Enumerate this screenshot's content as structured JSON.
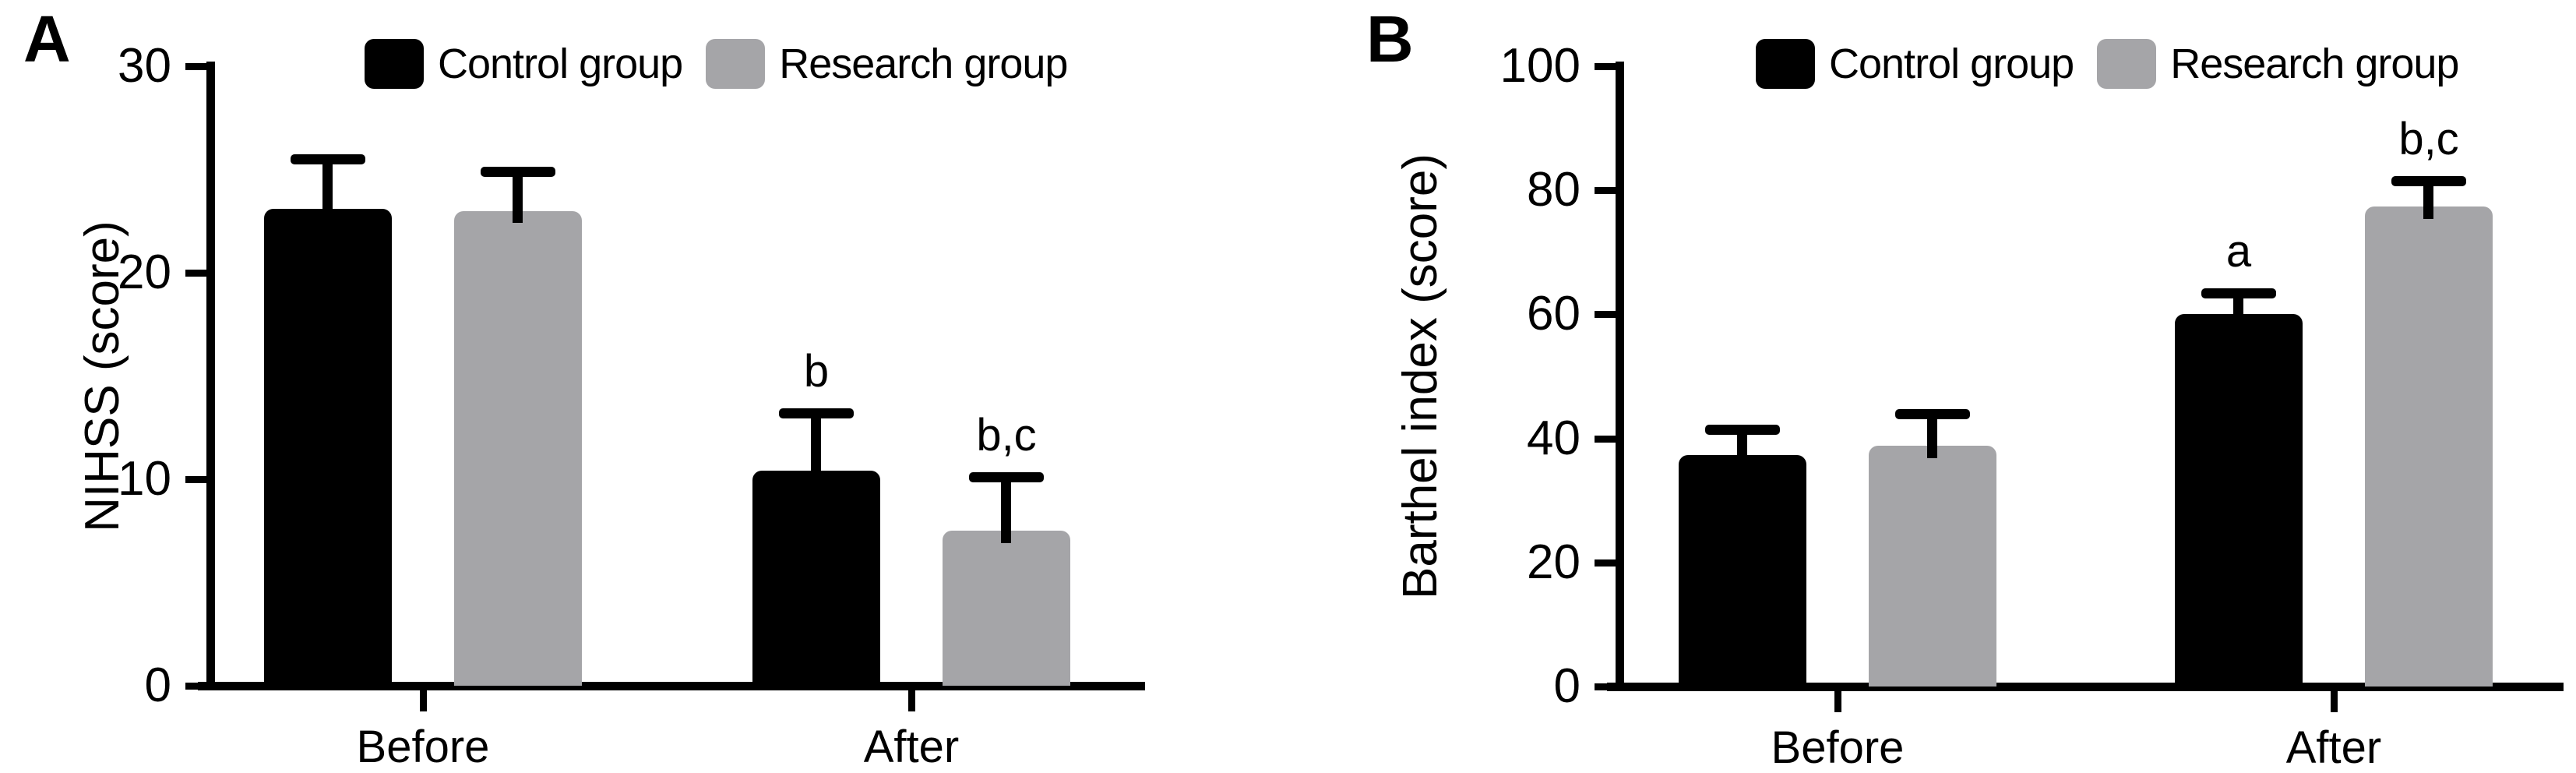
{
  "figure": {
    "background": "#ffffff",
    "colors": {
      "control_group": "#000000",
      "research_group": "#a5a5a8"
    }
  },
  "chart_data": [
    {
      "type": "bar",
      "panel_label": "A",
      "title": "",
      "xlabel": "",
      "ylabel": "NIHSS (score)",
      "categories": [
        "Before",
        "After"
      ],
      "ylim": [
        0,
        30
      ],
      "yticks": [
        0,
        10,
        20,
        30
      ],
      "grid": "off",
      "legend_position": "top",
      "series": [
        {
          "name": "Control group",
          "color": "#000000",
          "values": [
            23.1,
            10.4
          ],
          "errors": [
            2.4,
            2.8
          ],
          "annotations": [
            "",
            "b"
          ]
        },
        {
          "name": "Research group",
          "color": "#a5a5a8",
          "values": [
            23.0,
            7.5
          ],
          "errors": [
            1.9,
            2.6
          ],
          "annotations": [
            "",
            "b,c"
          ]
        }
      ]
    },
    {
      "type": "bar",
      "panel_label": "B",
      "title": "",
      "xlabel": "",
      "ylabel": "Barthel index (score)",
      "categories": [
        "Before",
        "After"
      ],
      "ylim": [
        0,
        100
      ],
      "yticks": [
        0,
        20,
        40,
        60,
        80,
        100
      ],
      "grid": "off",
      "legend_position": "top",
      "series": [
        {
          "name": "Control group",
          "color": "#000000",
          "values": [
            37.3,
            60.1
          ],
          "errors": [
            4.2,
            3.3
          ],
          "annotations": [
            "",
            "a"
          ]
        },
        {
          "name": "Research group",
          "color": "#a5a5a8",
          "values": [
            38.8,
            77.4
          ],
          "errors": [
            5.2,
            4.1
          ],
          "annotations": [
            "",
            "b,c"
          ]
        }
      ]
    }
  ]
}
